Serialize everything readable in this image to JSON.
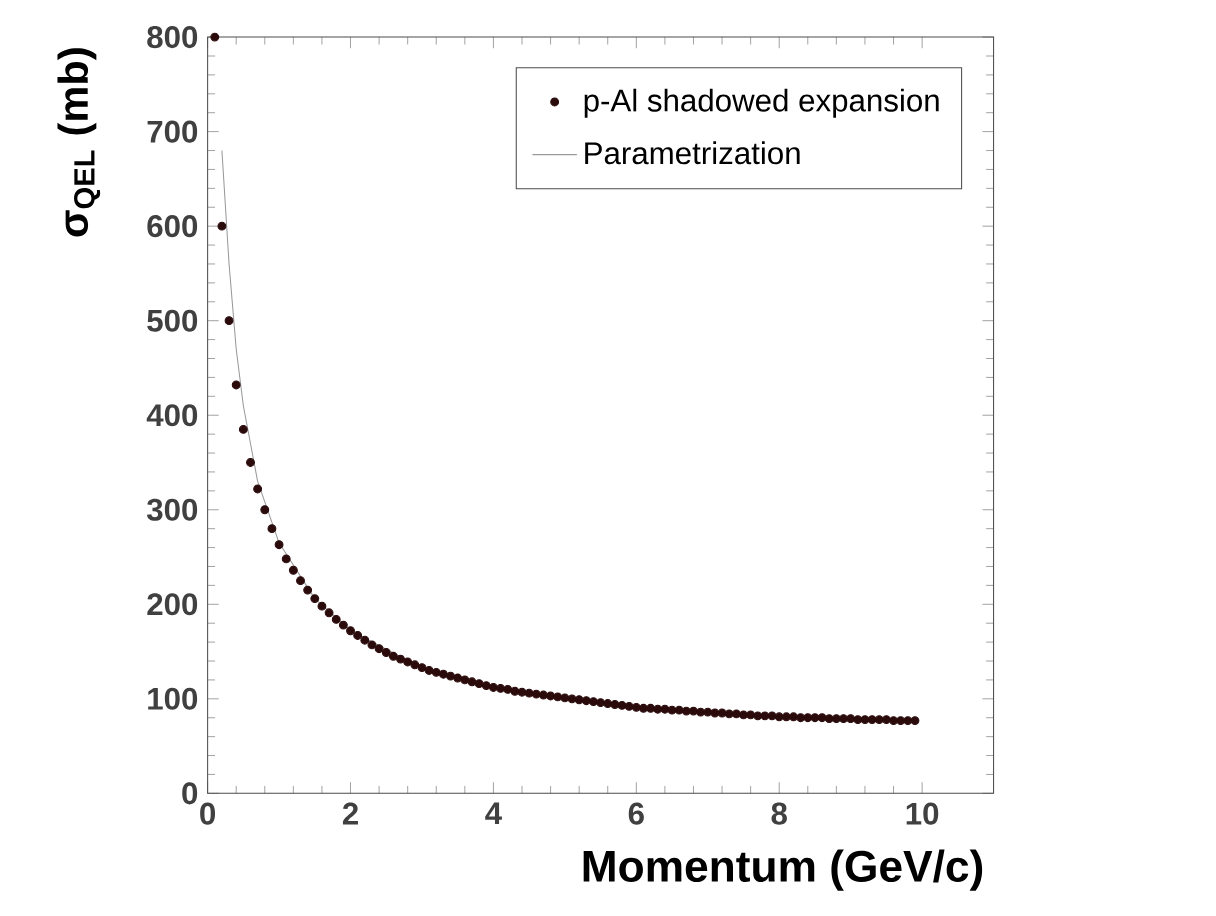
{
  "chart_data": {
    "type": "scatter",
    "xlabel": "Momentum (GeV/c)",
    "ylabel": "σ$_{QEL}$ (mb)",
    "xlim": [
      0,
      11
    ],
    "xticks": [
      0,
      2,
      4,
      6,
      8,
      10
    ],
    "ylim": [
      0,
      800
    ],
    "yticks": [
      0,
      100,
      200,
      300,
      400,
      500,
      600,
      700,
      800
    ],
    "legend": "top right",
    "grid": false,
    "series": [
      {
        "name": "p-Al shadowed expansion",
        "marker": "circle",
        "color": "#2a0a0a",
        "x": [
          0.1,
          0.2,
          0.3,
          0.4,
          0.5,
          0.6,
          0.7,
          0.8,
          0.9,
          1.0,
          1.1,
          1.2,
          1.3,
          1.4,
          1.5,
          1.6,
          1.7,
          1.8,
          1.9,
          2.0,
          2.1,
          2.2,
          2.3,
          2.4,
          2.5,
          2.6,
          2.7,
          2.8,
          2.9,
          3.0,
          3.1,
          3.2,
          3.3,
          3.4,
          3.5,
          3.6,
          3.7,
          3.8,
          3.9,
          4.0,
          4.1,
          4.2,
          4.3,
          4.4,
          4.5,
          4.6,
          4.7,
          4.8,
          4.9,
          5.0,
          5.1,
          5.2,
          5.3,
          5.4,
          5.5,
          5.6,
          5.7,
          5.8,
          5.9,
          6.0,
          6.1,
          6.2,
          6.3,
          6.4,
          6.5,
          6.6,
          6.7,
          6.8,
          6.9,
          7.0,
          7.1,
          7.2,
          7.3,
          7.4,
          7.5,
          7.6,
          7.7,
          7.8,
          7.9,
          8.0,
          8.1,
          8.2,
          8.3,
          8.4,
          8.5,
          8.6,
          8.7,
          8.8,
          8.9,
          9.0,
          9.1,
          9.2,
          9.3,
          9.4,
          9.5,
          9.6,
          9.7,
          9.8,
          9.9
        ],
        "values": [
          800,
          600,
          500,
          432,
          385,
          350,
          322,
          300,
          280,
          263,
          248,
          236,
          225,
          215,
          206,
          198,
          191,
          184,
          178,
          172,
          167,
          162,
          157,
          153,
          149,
          145,
          142,
          139,
          136,
          133,
          130,
          128,
          126,
          124,
          122,
          120,
          118,
          116,
          114,
          112,
          111,
          110,
          108,
          107,
          106,
          105,
          104,
          103,
          102,
          101,
          100,
          99,
          98,
          97,
          96,
          95,
          94,
          93,
          92,
          91,
          90,
          90,
          89,
          89,
          88,
          88,
          87,
          87,
          86,
          86,
          85,
          85,
          84,
          84,
          83,
          83,
          82,
          82,
          82,
          81,
          81,
          81,
          80,
          80,
          80,
          80,
          79,
          79,
          79,
          79,
          78,
          78,
          78,
          78,
          78,
          77,
          77,
          77,
          77
        ]
      },
      {
        "name": "Parametrization",
        "type": "line",
        "marker": "none",
        "line_style": "solid",
        "color": "#999999",
        "x": [
          0.2,
          0.3,
          0.4,
          0.5,
          0.7,
          1.0,
          1.5,
          2.0,
          3.0,
          4.0,
          5.0,
          6.0,
          7.0,
          8.0,
          9.0,
          9.9
        ],
        "values": [
          680,
          560,
          470,
          410,
          330,
          265,
          206,
          172,
          133,
          112,
          101,
          91,
          86,
          81,
          79,
          77
        ]
      }
    ]
  }
}
